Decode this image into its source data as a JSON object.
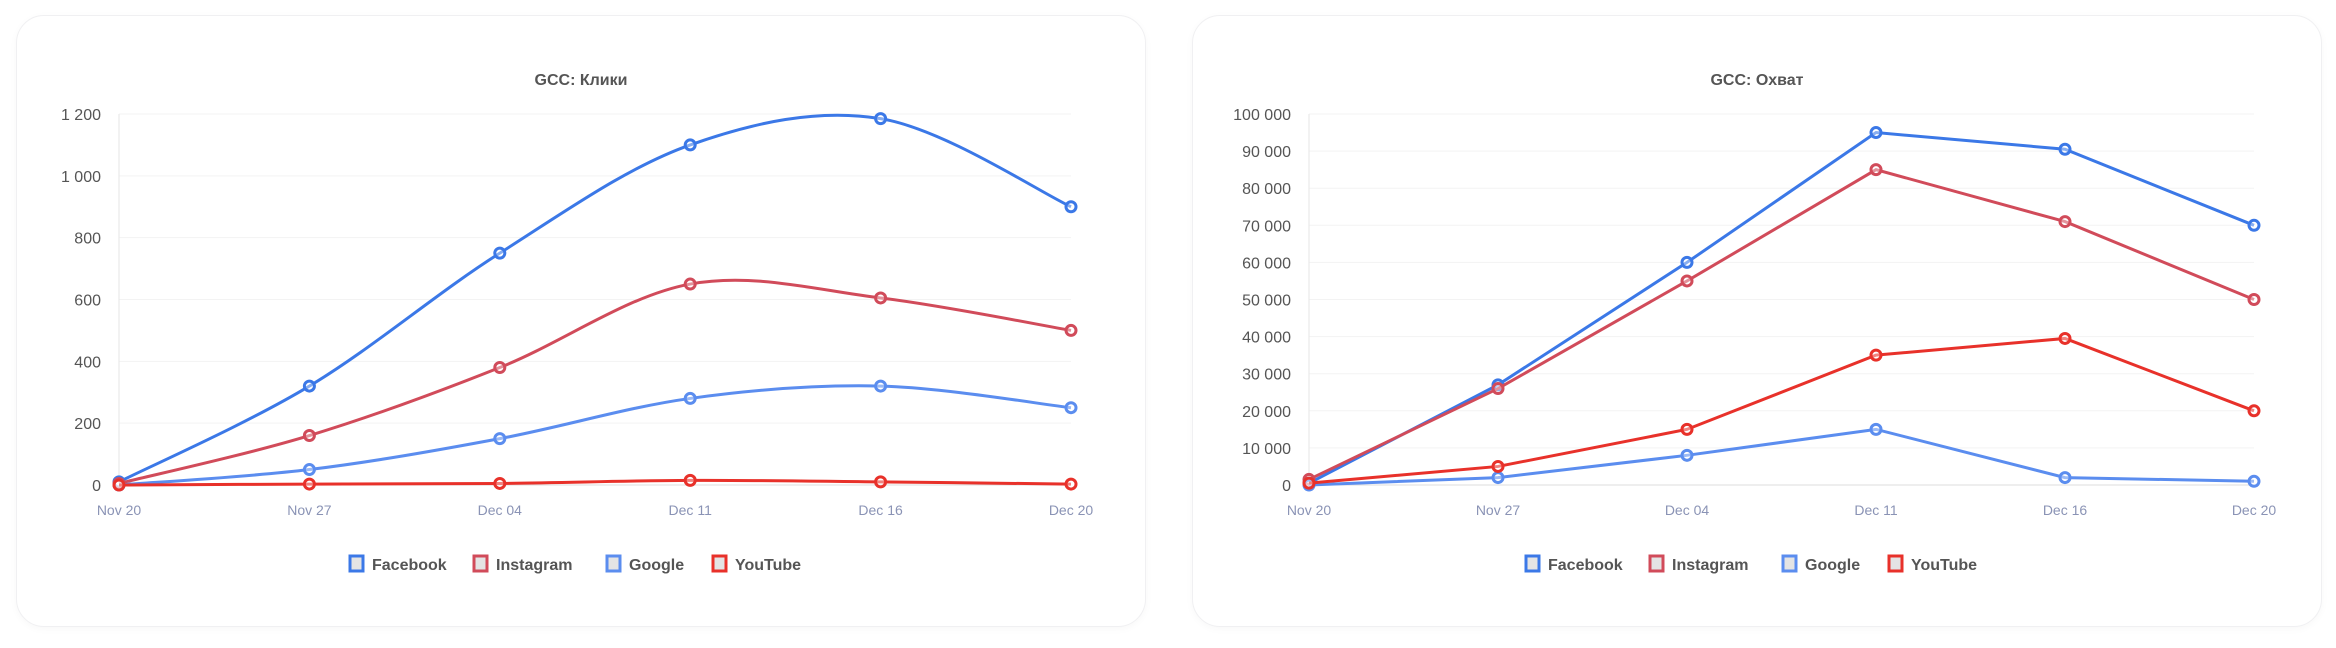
{
  "chart_data": [
    {
      "type": "line",
      "smooth": true,
      "title": "GCC: Клики",
      "categories": [
        "Nov 20",
        "Nov 27",
        "Dec 04",
        "Dec 11",
        "Dec 16",
        "Dec 20"
      ],
      "ylim": [
        0,
        1200
      ],
      "yticks": [
        0,
        200,
        400,
        600,
        800,
        1000,
        1200
      ],
      "ytick_labels": [
        "0",
        "200",
        "400",
        "600",
        "800",
        "1 000",
        "1 200"
      ],
      "grid": true,
      "legend": "bottom",
      "series": [
        {
          "name": "Facebook",
          "color": "#3b78e7",
          "values": [
            10,
            320,
            750,
            1100,
            1185,
            900
          ]
        },
        {
          "name": "Instagram",
          "color": "#d14b5a",
          "values": [
            5,
            160,
            380,
            650,
            605,
            500
          ]
        },
        {
          "name": "Google",
          "color": "#5b8def",
          "values": [
            0,
            50,
            150,
            280,
            320,
            250
          ]
        },
        {
          "name": "YouTube",
          "color": "#e8312a",
          "values": [
            0,
            3,
            5,
            15,
            10,
            3
          ]
        }
      ]
    },
    {
      "type": "line",
      "smooth": false,
      "title": "GCC: Охват",
      "categories": [
        "Nov 20",
        "Nov 27",
        "Dec 04",
        "Dec 11",
        "Dec 16",
        "Dec 20"
      ],
      "ylim": [
        0,
        100000
      ],
      "yticks": [
        0,
        10000,
        20000,
        30000,
        40000,
        50000,
        60000,
        70000,
        80000,
        90000,
        100000
      ],
      "ytick_labels": [
        "0",
        "10 000",
        "20 000",
        "30 000",
        "40 000",
        "50 000",
        "60 000",
        "70 000",
        "80 000",
        "90 000",
        "100 000"
      ],
      "grid": true,
      "legend": "bottom",
      "series": [
        {
          "name": "Facebook",
          "color": "#3b78e7",
          "values": [
            500,
            27000,
            60000,
            95000,
            90500,
            70000
          ]
        },
        {
          "name": "Instagram",
          "color": "#d14b5a",
          "values": [
            1500,
            26000,
            55000,
            85000,
            71000,
            50000
          ]
        },
        {
          "name": "Google",
          "color": "#5b8def",
          "values": [
            0,
            2000,
            8000,
            15000,
            2000,
            1000
          ]
        },
        {
          "name": "YouTube",
          "color": "#e8312a",
          "values": [
            500,
            5000,
            15000,
            35000,
            39500,
            20000
          ]
        }
      ]
    }
  ]
}
